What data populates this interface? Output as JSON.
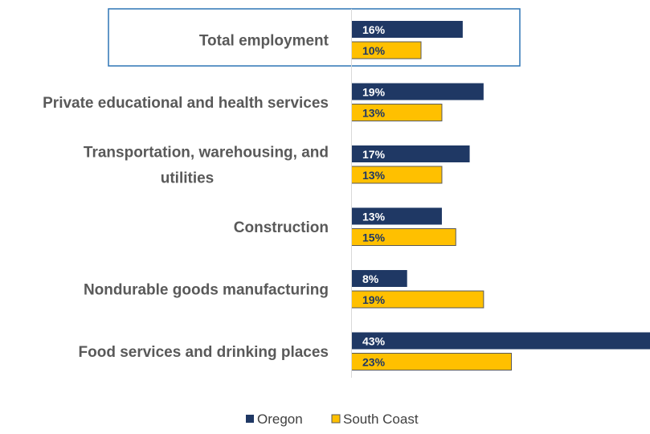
{
  "chart_data": {
    "type": "bar",
    "orientation": "horizontal",
    "title": "",
    "categories": [
      [
        "Total employment"
      ],
      [
        "Private educational and health services"
      ],
      [
        "Transportation, warehousing, and",
        "utilities"
      ],
      [
        "Construction"
      ],
      [
        "Nondurable goods manufacturing"
      ],
      [
        "Food services and drinking places"
      ]
    ],
    "highlighted_category": "Total employment",
    "series": [
      {
        "name": "Oregon",
        "color": "#1f3864",
        "label_color": "#ffffff",
        "values": [
          16,
          19,
          17,
          13,
          8,
          43
        ],
        "labels": [
          "16%",
          "19%",
          "17%",
          "13%",
          "8%",
          "43%"
        ]
      },
      {
        "name": "South Coast",
        "color": "#ffc000",
        "label_color": "#1f3864",
        "stroke": "#595959",
        "values": [
          10,
          13,
          13,
          15,
          19,
          23
        ],
        "labels": [
          "10%",
          "13%",
          "13%",
          "15%",
          "19%",
          "23%"
        ]
      }
    ],
    "value_unit": "%",
    "xlim": [
      0,
      43
    ],
    "grid": false,
    "legend_position": "bottom"
  }
}
